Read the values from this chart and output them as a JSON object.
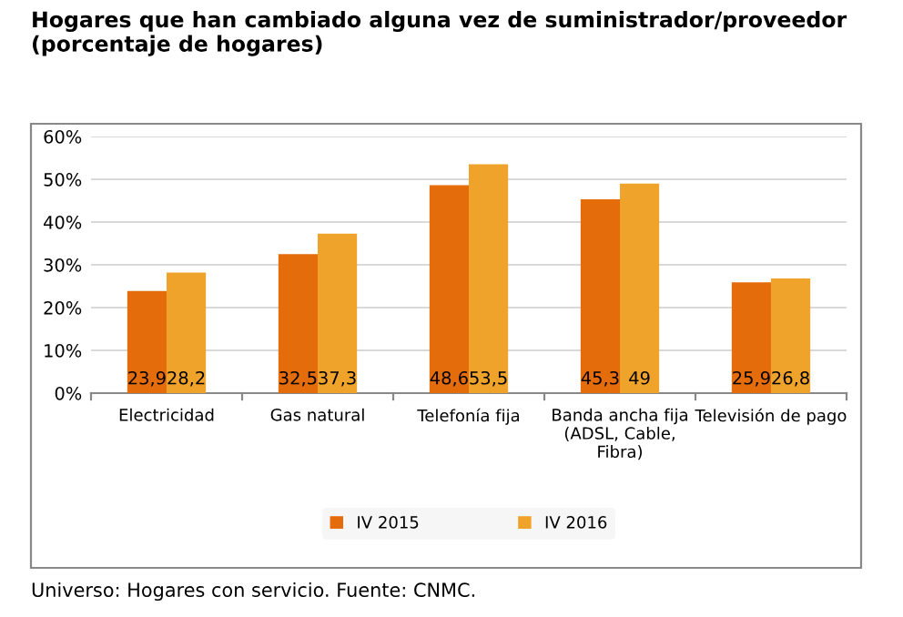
{
  "chart_data": {
    "type": "bar",
    "title": "Hogares que han cambiado alguna vez de suministrador/proveedor\n(porcentaje de hogares)",
    "categories": [
      "Electricidad",
      "Gas natural",
      "Telefonía fija",
      "Banda ancha fija\n(ADSL, Cable,\nFibra)",
      "Televisión de pago"
    ],
    "series": [
      {
        "name": "IV 2015",
        "color": "#e46c0a",
        "values": [
          23.9,
          32.5,
          48.6,
          45.3,
          25.9
        ],
        "value_labels": [
          "23,9",
          "32,5",
          "48,6",
          "45,3",
          "25,9"
        ]
      },
      {
        "name": "IV 2016",
        "color": "#f0a32a",
        "values": [
          28.2,
          37.3,
          53.5,
          49,
          26.8
        ],
        "value_labels": [
          "28,2",
          "37,3",
          "53,5",
          "49",
          "26,8"
        ]
      }
    ],
    "ylim": [
      0,
      60
    ],
    "yticks": [
      {
        "value": 0,
        "label": "0%"
      },
      {
        "value": 10,
        "label": "10%"
      },
      {
        "value": 20,
        "label": "20%"
      },
      {
        "value": 30,
        "label": "30%"
      },
      {
        "value": 40,
        "label": "40%"
      },
      {
        "value": 50,
        "label": "50%"
      },
      {
        "value": 60,
        "label": "60%"
      }
    ],
    "grid": "y",
    "legend": "bottom",
    "annotations": [
      "Universo: Hogares con servicio. Fuente: CNMC."
    ]
  }
}
